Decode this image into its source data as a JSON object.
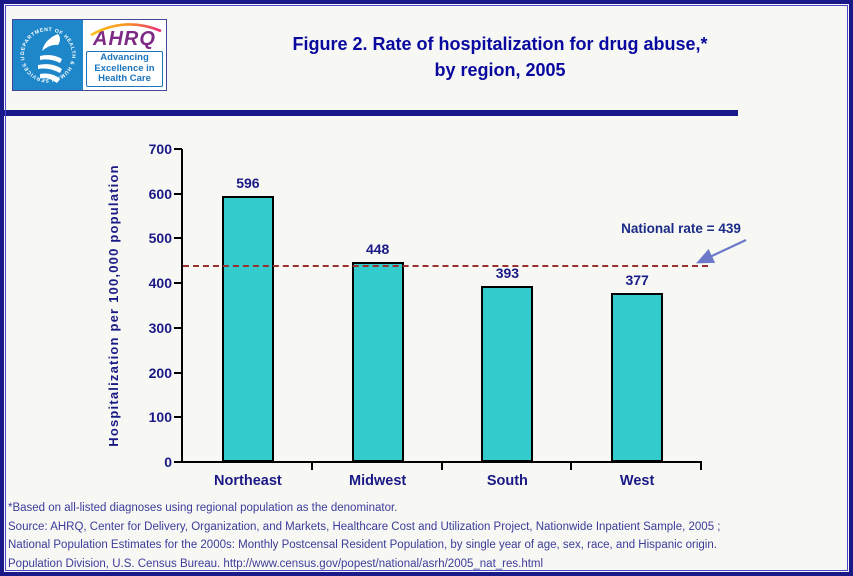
{
  "page": {
    "background": "#F7F7F4",
    "border_outer_color": "#191989",
    "border_inner_color": "#4848C8"
  },
  "header": {
    "logo": {
      "seal_text": "DEPARTMENT OF HEALTH & HUMAN SERVICES USA",
      "org_abbr": "AHRQ",
      "tagline_lines": [
        "Advancing",
        "Excellence in",
        "Health Care"
      ],
      "hhs_blue": "#1E87C9",
      "ahrq_purple": "#7D2A84",
      "tagline_blue": "#1A74BE"
    },
    "title_line1": "Figure 2. Rate of hospitalization for drug abuse,*",
    "title_line2": "by region, 2005",
    "title_color": "#0909A0"
  },
  "chart_data": {
    "type": "bar",
    "title": "Figure 2. Rate of hospitalization for drug abuse,* by region, 2005",
    "categories": [
      "Northeast",
      "Midwest",
      "South",
      "West"
    ],
    "values": [
      596,
      448,
      393,
      377
    ],
    "xlabel": "",
    "ylabel": "Hospitalization per 100,000 population",
    "ylim": [
      0,
      700
    ],
    "ytick_step": 100,
    "grid": false,
    "legend": "none",
    "bar_color": "#33CBCB",
    "bar_border_color": "#000000",
    "axis_text_color": "#1A1A86",
    "reference_line": {
      "value": 439,
      "label": "National rate = 439",
      "color": "#993030",
      "style": "dashed"
    },
    "annotation_arrow_color": "#6B79C8"
  },
  "footnotes": {
    "color": "#3C3C9B",
    "lines": [
      "*Based on all-listed diagnoses using regional population as the denominator.",
      "Source: AHRQ, Center for Delivery, Organization, and Markets, Healthcare Cost and Utilization Project, Nationwide Inpatient Sample, 2005 ;",
      "National Population Estimates for the 2000s: Monthly Postcensal Resident Population, by single year of age, sex, race, and Hispanic origin.",
      "Population Division, U.S. Census Bureau.  http://www.census.gov/popest/national/asrh/2005_nat_res.html"
    ]
  }
}
